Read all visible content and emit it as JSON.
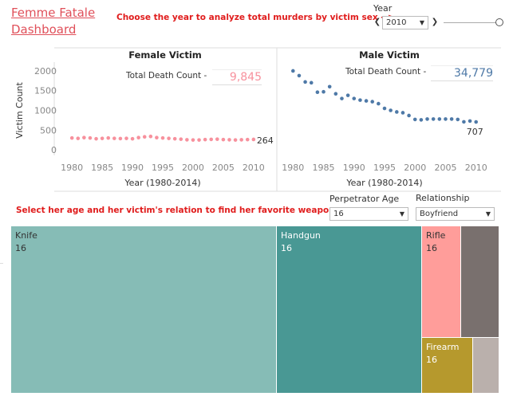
{
  "dashboard": {
    "title": "Femme Fatale Dashboard",
    "instruction_year": "Choose the year to analyze total murders by victim sex -->",
    "instruction_weapon": "Select her age and her victim's relation to find her favorite weapon -->"
  },
  "year_filter": {
    "label": "Year",
    "value": "2010",
    "prev_icon": "chevron-left-icon",
    "next_icon": "chevron-right-icon"
  },
  "kpi": {
    "label": "Total Death Count -",
    "female_value": "9,845",
    "male_value": "34,779"
  },
  "filters": {
    "age_label": "Perpetrator Age",
    "age_value": "16",
    "relationship_label": "Relationship",
    "relationship_value": "Boyfriend"
  },
  "colors": {
    "female": "#f7919d",
    "male": "#4e79a7",
    "accent_red": "#e01c1c",
    "knife": "#86bcb6",
    "handgun": "#499894",
    "rifle": "#ff9d9a",
    "other_dark": "#79706e",
    "firearm": "#b6992d",
    "other_light": "#bab0ac"
  },
  "chart_data": [
    {
      "type": "scatter",
      "title": "Female Victim",
      "xlabel": "Year (1980-2014)",
      "ylabel": "Victim Count",
      "xlim": [
        1978,
        2012
      ],
      "ylim": [
        -100,
        2100
      ],
      "xticks": [
        1980,
        1985,
        1990,
        1995,
        2000,
        2005,
        2010
      ],
      "yticks": [
        0,
        500,
        1000,
        1500,
        2000
      ],
      "grid": false,
      "annotation": "264",
      "series": [
        {
          "x": [
            1980,
            1981,
            1982,
            1983,
            1984,
            1985,
            1986,
            1987,
            1988,
            1989,
            1990,
            1991,
            1992,
            1993,
            1994,
            1995,
            1996,
            1997,
            1998,
            1999,
            2000,
            2001,
            2002,
            2003,
            2004,
            2005,
            2006,
            2007,
            2008,
            2009,
            2010
          ],
          "y": [
            300,
            290,
            310,
            300,
            280,
            290,
            300,
            290,
            285,
            290,
            280,
            310,
            330,
            340,
            310,
            300,
            290,
            280,
            270,
            255,
            250,
            250,
            260,
            265,
            270,
            260,
            255,
            250,
            255,
            260,
            264
          ]
        }
      ]
    },
    {
      "type": "scatter",
      "title": "Male Victim",
      "xlabel": "Year (1980-2014)",
      "ylabel": "",
      "xlim": [
        1978,
        2012
      ],
      "ylim": [
        -100,
        2100
      ],
      "xticks": [
        1980,
        1985,
        1990,
        1995,
        2000,
        2005,
        2010
      ],
      "yticks": [
        0,
        500,
        1000,
        1500,
        2000
      ],
      "grid": false,
      "annotation": "707",
      "series": [
        {
          "x": [
            1980,
            1981,
            1982,
            1983,
            1984,
            1985,
            1986,
            1987,
            1988,
            1989,
            1990,
            1991,
            1992,
            1993,
            1994,
            1995,
            1996,
            1997,
            1998,
            1999,
            2000,
            2001,
            2002,
            2003,
            2004,
            2005,
            2006,
            2007,
            2008,
            2009,
            2010
          ],
          "y": [
            2000,
            1880,
            1720,
            1700,
            1460,
            1470,
            1600,
            1420,
            1300,
            1380,
            1300,
            1260,
            1240,
            1220,
            1170,
            1050,
            1000,
            960,
            940,
            870,
            770,
            760,
            780,
            780,
            780,
            780,
            780,
            770,
            710,
            730,
            707
          ]
        }
      ]
    },
    {
      "type": "treemap",
      "title": "",
      "items": [
        {
          "name": "Knife",
          "value": 16
        },
        {
          "name": "Handgun",
          "value": 16
        },
        {
          "name": "Rifle",
          "value": 16
        },
        {
          "name": "",
          "value": null
        },
        {
          "name": "Firearm",
          "value": 16
        },
        {
          "name": "",
          "value": null
        }
      ]
    }
  ]
}
